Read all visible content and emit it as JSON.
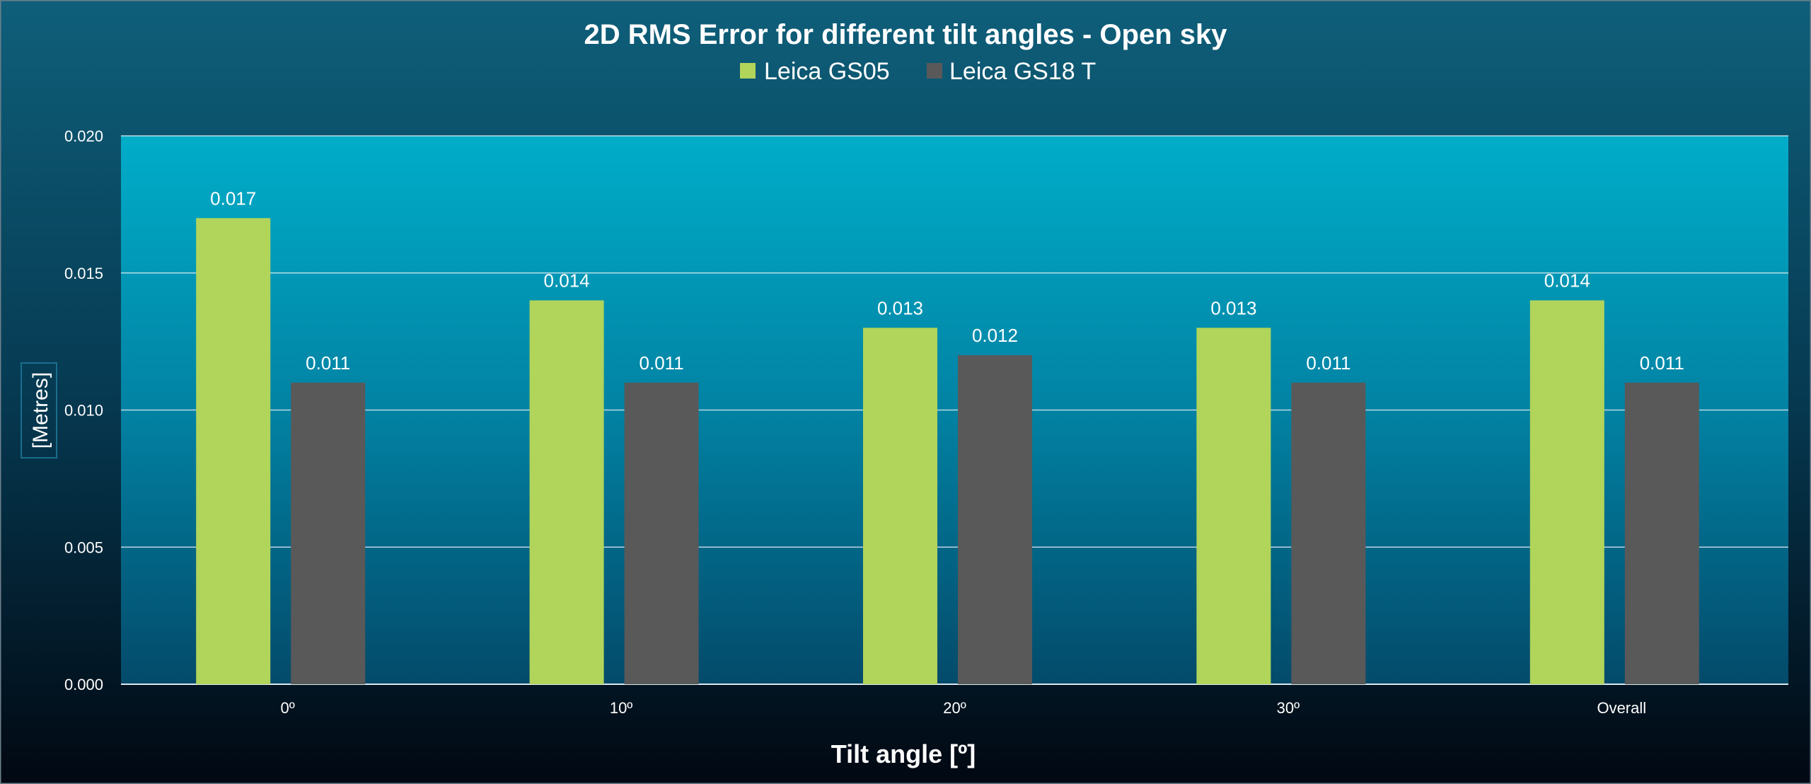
{
  "chart_data": {
    "type": "bar",
    "title": "2D RMS Error for different tilt angles - Open sky",
    "xlabel": "Tilt angle [º]",
    "ylabel": "[Metres]",
    "categories": [
      "0º",
      "10º",
      "20º",
      "30º",
      "Overall"
    ],
    "series": [
      {
        "name": "Leica GS05",
        "color": "#b1d45a",
        "values": [
          0.017,
          0.014,
          0.013,
          0.013,
          0.014
        ],
        "labels": [
          "0.017",
          "0.014",
          "0.013",
          "0.013",
          "0.014"
        ]
      },
      {
        "name": "Leica GS18 T",
        "color": "#595959",
        "values": [
          0.011,
          0.011,
          0.012,
          0.011,
          0.011
        ],
        "labels": [
          "0.011",
          "0.011",
          "0.012",
          "0.011",
          "0.011"
        ]
      }
    ],
    "ylim": [
      0,
      0.02
    ],
    "yticks": [
      0.0,
      0.005,
      0.01,
      0.015,
      0.02
    ],
    "ytick_labels": [
      "0.000",
      "0.005",
      "0.010",
      "0.015",
      "0.020"
    ],
    "grid": true,
    "legend_position": "top"
  }
}
